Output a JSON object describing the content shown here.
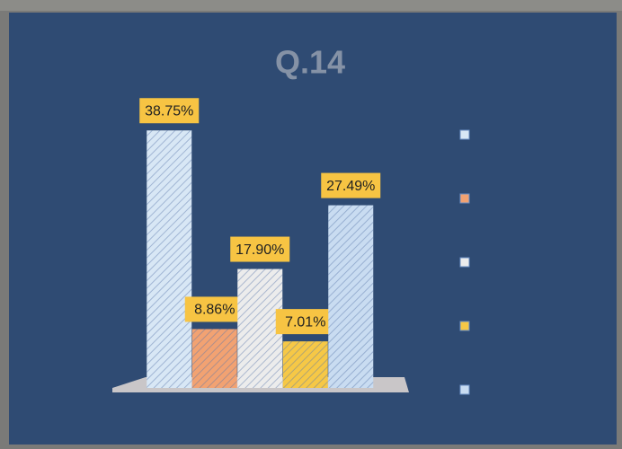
{
  "chart_data": {
    "type": "bar",
    "title": "Q.14",
    "categories": [
      null,
      null,
      null,
      null,
      null
    ],
    "values": [
      38.75,
      8.86,
      17.9,
      7.01,
      27.49
    ],
    "value_labels": [
      "38.75%",
      "8.86%",
      "17.90%",
      "7.01%",
      "27.49%"
    ],
    "colors": [
      "#d8e7f5",
      "#f2a272",
      "#ececec",
      "#f6c846",
      "#c9dcf1"
    ],
    "ylim": [
      0,
      45
    ]
  }
}
